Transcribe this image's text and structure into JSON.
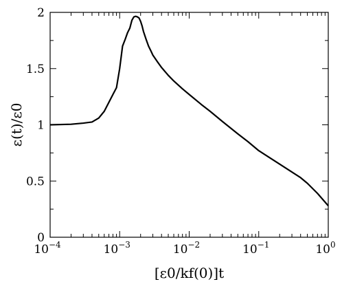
{
  "chart_data": {
    "type": "line",
    "x_scale": "log",
    "xlabel": "[ε0/kf(0)]t",
    "ylabel": "ε(t)/ε0",
    "xlim": [
      0.0001,
      1
    ],
    "ylim": [
      0,
      2
    ],
    "grid": false,
    "legend": "none",
    "x_tick_base": "10",
    "x_ticks": [
      {
        "value": 0.0001,
        "exponent": "−4"
      },
      {
        "value": 0.001,
        "exponent": "−3"
      },
      {
        "value": 0.01,
        "exponent": "−2"
      },
      {
        "value": 0.1,
        "exponent": "−1"
      },
      {
        "value": 1,
        "exponent": "0"
      }
    ],
    "y_ticks": [
      {
        "value": 0,
        "label": "0"
      },
      {
        "value": 0.5,
        "label": "0.5"
      },
      {
        "value": 1,
        "label": "1"
      },
      {
        "value": 1.5,
        "label": "1.5"
      },
      {
        "value": 2,
        "label": "2"
      }
    ],
    "series": [
      {
        "color": "#000000",
        "x": [
          0.0001,
          0.0002,
          0.0003,
          0.0004,
          0.0005,
          0.0006,
          0.0007,
          0.0008,
          0.0009,
          0.001,
          0.0011,
          0.0012,
          0.0013,
          0.0014,
          0.0015,
          0.0016,
          0.0017,
          0.0018,
          0.0019,
          0.002,
          0.0021,
          0.0022,
          0.0024,
          0.0026,
          0.0028,
          0.003,
          0.0035,
          0.004,
          0.005,
          0.006,
          0.008,
          0.01,
          0.015,
          0.02,
          0.03,
          0.05,
          0.07,
          0.1,
          0.15,
          0.2,
          0.3,
          0.4,
          0.5,
          0.7,
          1.0
        ],
        "y": [
          1.0,
          1.005,
          1.015,
          1.025,
          1.06,
          1.12,
          1.2,
          1.27,
          1.33,
          1.5,
          1.7,
          1.76,
          1.82,
          1.86,
          1.93,
          1.96,
          1.965,
          1.96,
          1.95,
          1.92,
          1.88,
          1.83,
          1.76,
          1.7,
          1.66,
          1.62,
          1.56,
          1.51,
          1.44,
          1.39,
          1.32,
          1.27,
          1.18,
          1.12,
          1.03,
          0.92,
          0.85,
          0.77,
          0.7,
          0.65,
          0.58,
          0.53,
          0.48,
          0.39,
          0.28
        ]
      }
    ]
  }
}
